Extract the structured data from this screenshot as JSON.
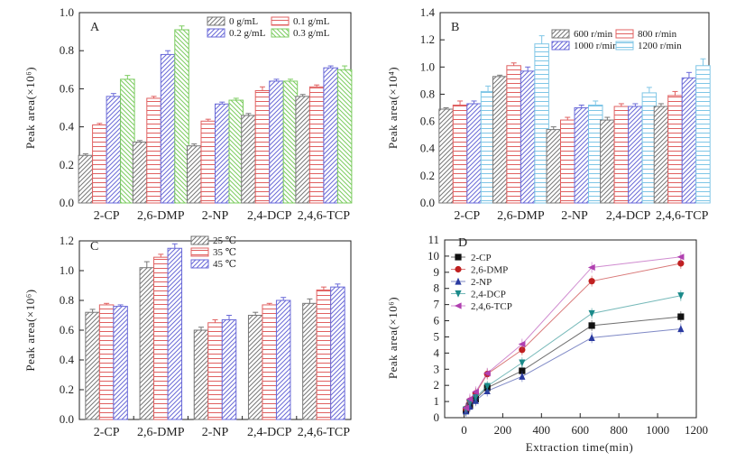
{
  "chart_data": [
    {
      "panel": "A",
      "type": "bar",
      "ylabel": "Peak area(×10⁶)",
      "ylim": [
        0,
        1.0
      ],
      "yticks": [
        "0.0",
        "0.2",
        "0.4",
        "0.6",
        "0.8",
        "1.0"
      ],
      "categories": [
        "2-CP",
        "2,6-DMP",
        "2-NP",
        "2,4-DCP",
        "2,4,6-TCP"
      ],
      "legend": {
        "placement": "top-right",
        "columns": 2
      },
      "series": [
        {
          "name": "0 g/mL",
          "color": "#777777",
          "pattern": "diag",
          "values": [
            0.25,
            0.32,
            0.3,
            0.46,
            0.56
          ],
          "errors": [
            0.008,
            0.008,
            0.01,
            0.01,
            0.01
          ]
        },
        {
          "name": "0.1 g/mL",
          "color": "#e06060",
          "pattern": "horiz",
          "values": [
            0.41,
            0.55,
            0.43,
            0.59,
            0.61
          ],
          "errors": [
            0.008,
            0.01,
            0.01,
            0.02,
            0.01
          ]
        },
        {
          "name": "0.2 g/mL",
          "color": "#6a6ad8",
          "pattern": "diag",
          "values": [
            0.56,
            0.78,
            0.52,
            0.64,
            0.71
          ],
          "errors": [
            0.015,
            0.02,
            0.01,
            0.01,
            0.01
          ]
        },
        {
          "name": "0.3 g/mL",
          "color": "#7ccc60",
          "pattern": "rdiag",
          "values": [
            0.65,
            0.91,
            0.54,
            0.64,
            0.7
          ],
          "errors": [
            0.02,
            0.02,
            0.01,
            0.01,
            0.02
          ]
        }
      ]
    },
    {
      "panel": "B",
      "type": "bar",
      "ylabel": "Peak area(×10⁴)",
      "ylim": [
        0,
        1.4
      ],
      "yticks": [
        "0.0",
        "0.2",
        "0.4",
        "0.6",
        "0.8",
        "1.0",
        "1.2",
        "1.4"
      ],
      "categories": [
        "2-CP",
        "2,6-DMP",
        "2-NP",
        "2,4-DCP",
        "2,4,6-TCP"
      ],
      "legend": {
        "placement": "top-right",
        "columns": 2
      },
      "series": [
        {
          "name": "600 r/min",
          "color": "#777777",
          "pattern": "diag",
          "values": [
            0.69,
            0.93,
            0.54,
            0.61,
            0.71
          ],
          "errors": [
            0.01,
            0.01,
            0.02,
            0.02,
            0.02
          ]
        },
        {
          "name": "800 r/min",
          "color": "#e06060",
          "pattern": "horiz",
          "values": [
            0.72,
            1.01,
            0.61,
            0.71,
            0.79
          ],
          "errors": [
            0.03,
            0.02,
            0.02,
            0.02,
            0.03
          ]
        },
        {
          "name": "1000 r/min",
          "color": "#6a6ad8",
          "pattern": "diag",
          "values": [
            0.73,
            0.97,
            0.7,
            0.71,
            0.92
          ],
          "errors": [
            0.02,
            0.03,
            0.02,
            0.02,
            0.04
          ]
        },
        {
          "name": "1200 r/min",
          "color": "#7fc6e6",
          "pattern": "horiz",
          "values": [
            0.82,
            1.17,
            0.72,
            0.81,
            1.01
          ],
          "errors": [
            0.04,
            0.06,
            0.03,
            0.04,
            0.05
          ]
        }
      ]
    },
    {
      "panel": "C",
      "type": "bar",
      "ylabel": "Peak area(×10⁶)",
      "ylim": [
        0,
        1.2
      ],
      "yticks": [
        "0.0",
        "0.2",
        "0.4",
        "0.6",
        "0.8",
        "1.0",
        "1.2"
      ],
      "categories": [
        "2-CP",
        "2,6-DMP",
        "2-NP",
        "2,4-DCP",
        "2,4,6-TCP"
      ],
      "legend": {
        "placement": "top-left",
        "columns": 1
      },
      "series": [
        {
          "name": "25 ℃",
          "color": "#777777",
          "pattern": "diag",
          "values": [
            0.72,
            1.02,
            0.6,
            0.7,
            0.78
          ],
          "errors": [
            0.02,
            0.04,
            0.02,
            0.02,
            0.03
          ]
        },
        {
          "name": "35 ℃",
          "color": "#e06060",
          "pattern": "horiz",
          "values": [
            0.77,
            1.09,
            0.65,
            0.77,
            0.87
          ],
          "errors": [
            0.01,
            0.02,
            0.02,
            0.01,
            0.02
          ]
        },
        {
          "name": "45 ℃",
          "color": "#6a6ad8",
          "pattern": "diag",
          "values": [
            0.76,
            1.15,
            0.67,
            0.8,
            0.89
          ],
          "errors": [
            0.01,
            0.03,
            0.03,
            0.02,
            0.02
          ]
        }
      ]
    },
    {
      "panel": "D",
      "type": "line",
      "xlabel": "Extraction time(min)",
      "ylabel": "Peak area(×10⁶)",
      "xlim": [
        -100,
        1200
      ],
      "ylim": [
        0,
        11
      ],
      "xticks": [
        "0",
        "200",
        "400",
        "600",
        "800",
        "1000",
        "1200"
      ],
      "yticks": [
        "0",
        "1",
        "2",
        "3",
        "4",
        "5",
        "6",
        "7",
        "8",
        "9",
        "10",
        "11"
      ],
      "x": [
        10,
        30,
        60,
        120,
        300,
        660,
        1120
      ],
      "legend": {
        "placement": "top-left",
        "columns": 1
      },
      "series": [
        {
          "name": "2-CP",
          "color": "#111111",
          "marker": "square",
          "values": [
            0.45,
            0.75,
            1.15,
            1.85,
            2.9,
            5.7,
            6.25
          ]
        },
        {
          "name": "2,6-DMP",
          "color": "#c02020",
          "marker": "circle",
          "values": [
            0.55,
            1.05,
            1.5,
            2.7,
            4.2,
            8.45,
            9.55
          ]
        },
        {
          "name": "2-NP",
          "color": "#2a3aa0",
          "marker": "triangle-up",
          "values": [
            0.4,
            0.7,
            1.05,
            1.65,
            2.55,
            4.95,
            5.5
          ]
        },
        {
          "name": "2,4-DCP",
          "color": "#1a8a8a",
          "marker": "triangle-down",
          "values": [
            0.5,
            0.9,
            1.25,
            1.95,
            3.4,
            6.45,
            7.55
          ]
        },
        {
          "name": "2,4,6-TCP",
          "color": "#b040b0",
          "marker": "triangle-left",
          "values": [
            0.6,
            1.15,
            1.6,
            2.75,
            4.55,
            9.3,
            9.95
          ]
        }
      ]
    }
  ]
}
